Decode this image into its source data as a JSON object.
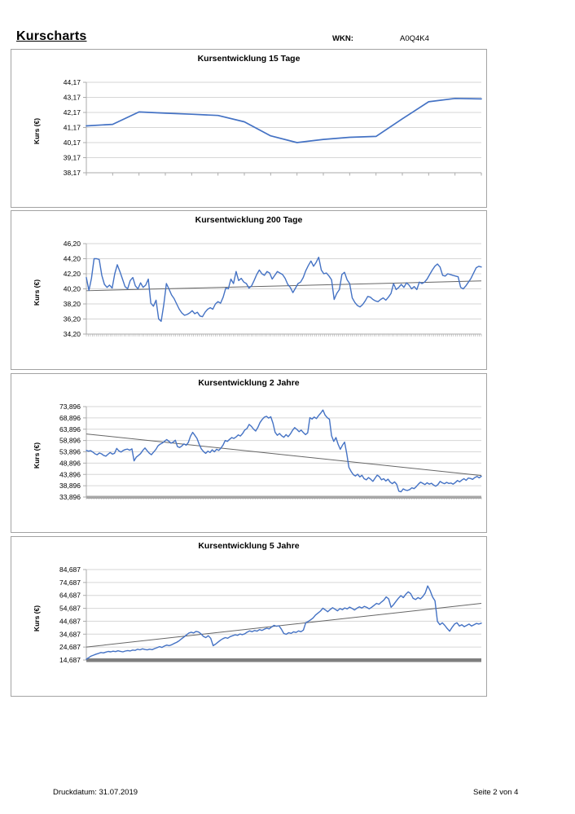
{
  "header": {
    "title": "Kurscharts",
    "wkn_label": "WKN:",
    "wkn_value": "A0Q4K4"
  },
  "footer": {
    "left": "Druckdatum: 31.07.2019",
    "right": "Seite 2 von 4"
  },
  "colors": {
    "series": "#4472C4",
    "trend": "#666666",
    "grid": "#D6D6D6",
    "axis": "#ABABAB",
    "thick_axis": "#A6A6A6",
    "thick_axis_dark": "#7F7F7F"
  },
  "chart_data": [
    {
      "type": "line",
      "title": "Kursentwicklung 15 Tage",
      "xlabel": "",
      "ylabel": "Kurs (€)",
      "ytick_labels": [
        "44,17",
        "43,17",
        "42,17",
        "41,17",
        "40,17",
        "39,17",
        "38,17"
      ],
      "ymin": 38.17,
      "ymax": 44.17,
      "grid": true,
      "legend": "none",
      "x_tick_count": 16,
      "x_axis_style": "ticks",
      "trend": null,
      "values": [
        41.28,
        41.38,
        42.2,
        42.12,
        42.05,
        41.97,
        41.55,
        40.62,
        40.17,
        40.38,
        40.52,
        40.58,
        41.75,
        42.88,
        43.1,
        43.07
      ]
    },
    {
      "type": "line",
      "title": "Kursentwicklung 200 Tage",
      "xlabel": "",
      "ylabel": "Kurs (€)",
      "ytick_labels": [
        "46,20",
        "44,20",
        "42,20",
        "40,20",
        "38,20",
        "36,20",
        "34,20"
      ],
      "ymin": 34.2,
      "ymax": 46.2,
      "grid": true,
      "legend": "none",
      "x_tick_count": 200,
      "x_axis_style": "dense",
      "trend": [
        39.95,
        41.25
      ],
      "values": [
        41.7,
        40.0,
        41.6,
        44.2,
        44.2,
        44.1,
        42.0,
        40.8,
        40.4,
        40.7,
        40.3,
        42.2,
        43.4,
        42.5,
        41.5,
        40.5,
        40.2,
        41.3,
        41.7,
        40.6,
        40.2,
        41.0,
        40.4,
        40.7,
        41.5,
        38.3,
        37.9,
        38.7,
        36.2,
        35.9,
        38.1,
        40.9,
        40.2,
        39.4,
        38.9,
        38.2,
        37.5,
        37.0,
        36.7,
        36.8,
        37.0,
        37.3,
        36.9,
        37.1,
        36.6,
        36.5,
        37.1,
        37.5,
        37.7,
        37.5,
        38.2,
        38.5,
        38.3,
        39.1,
        40.3,
        40.2,
        41.5,
        40.9,
        42.5,
        41.3,
        41.6,
        41.1,
        40.9,
        40.3,
        40.6,
        41.3,
        42.1,
        42.7,
        42.2,
        42.0,
        42.5,
        42.3,
        41.5,
        42.0,
        42.5,
        42.3,
        42.1,
        41.6,
        40.8,
        40.4,
        39.7,
        40.3,
        40.9,
        41.1,
        41.7,
        42.6,
        43.3,
        43.9,
        43.2,
        43.7,
        44.4,
        42.7,
        42.2,
        42.3,
        41.9,
        41.4,
        38.8,
        39.6,
        40.1,
        42.1,
        42.4,
        41.4,
        40.9,
        39.0,
        38.4,
        38.0,
        37.8,
        38.1,
        38.6,
        39.2,
        39.1,
        38.8,
        38.6,
        38.5,
        38.8,
        39.0,
        38.7,
        39.1,
        39.6,
        40.9,
        40.1,
        40.4,
        40.8,
        40.4,
        41.0,
        40.7,
        40.2,
        40.5,
        40.1,
        41.1,
        40.9,
        41.1,
        41.5,
        42.1,
        42.7,
        43.2,
        43.5,
        43.1,
        42.0,
        41.9,
        42.2,
        42.1,
        42.0,
        41.9,
        41.8,
        40.4,
        40.2,
        40.6,
        41.1,
        41.6,
        42.3,
        43.0,
        43.2,
        43.1
      ]
    },
    {
      "type": "line",
      "title": "Kursentwicklung 2 Jahre",
      "xlabel": "",
      "ylabel": "Kurs (€)",
      "ytick_labels": [
        "73,896",
        "68,896",
        "63,896",
        "58,896",
        "53,896",
        "48,896",
        "43,896",
        "38,896",
        "33,896"
      ],
      "ymin": 33.896,
      "ymax": 73.896,
      "grid": true,
      "legend": "none",
      "x_tick_count": 160,
      "x_axis_style": "thick",
      "trend": [
        61.8,
        43.4
      ],
      "values": [
        54.5,
        54.2,
        54.4,
        53.8,
        53.0,
        52.6,
        53.4,
        53.0,
        52.3,
        52.0,
        52.8,
        53.6,
        52.9,
        53.2,
        55.4,
        54.3,
        53.8,
        54.5,
        54.9,
        55.1,
        54.6,
        55.2,
        49.9,
        51.5,
        52.3,
        53.1,
        54.5,
        55.6,
        54.4,
        53.3,
        52.6,
        53.8,
        54.9,
        56.5,
        57.3,
        57.8,
        58.5,
        59.3,
        58.6,
        57.7,
        58.2,
        59.0,
        56.2,
        55.8,
        56.5,
        57.4,
        56.8,
        58.0,
        60.8,
        62.5,
        61.2,
        59.8,
        57.2,
        55.2,
        54.0,
        53.2,
        54.2,
        53.6,
        54.8,
        53.9,
        55.0,
        54.5,
        55.5,
        56.9,
        58.9,
        58.5,
        59.4,
        60.2,
        59.8,
        60.5,
        61.4,
        60.9,
        62.0,
        63.5,
        64.2,
        66.0,
        65.2,
        64.0,
        63.1,
        64.6,
        66.8,
        68.2,
        69.2,
        69.6,
        68.8,
        69.4,
        66.5,
        62.5,
        61.2,
        62.0,
        61.0,
        60.3,
        61.5,
        60.6,
        61.8,
        63.4,
        64.6,
        63.8,
        62.8,
        63.5,
        62.4,
        61.5,
        62.3,
        69.0,
        68.4,
        69.3,
        68.6,
        69.9,
        71.0,
        72.4,
        70.2,
        69.0,
        68.3,
        61.0,
        58.5,
        60.2,
        57.3,
        55.0,
        56.8,
        58.2,
        53.0,
        47.0,
        45.2,
        43.8,
        43.2,
        44.0,
        42.8,
        43.5,
        42.0,
        41.5,
        42.5,
        41.8,
        40.8,
        42.2,
        43.6,
        42.9,
        41.5,
        42.0,
        41.0,
        41.8,
        40.5,
        39.8,
        40.6,
        39.5,
        36.5,
        36.2,
        37.5,
        37.0,
        36.8,
        37.2,
        38.0,
        37.6,
        38.5,
        39.6,
        40.5,
        40.0,
        39.4,
        40.2,
        39.6,
        40.0,
        39.2,
        38.7,
        39.4,
        40.8,
        40.2,
        39.8,
        40.4,
        39.9,
        40.1,
        39.6,
        40.3,
        41.2,
        40.6,
        41.4,
        42.0,
        41.3,
        42.3,
        42.1,
        41.7,
        42.5,
        43.0,
        42.4,
        43.1
      ]
    },
    {
      "type": "line",
      "title": "Kursentwicklung 5 Jahre",
      "xlabel": "",
      "ylabel": "Kurs (€)",
      "ytick_labels": [
        "84,687",
        "74,687",
        "64,687",
        "54,687",
        "44,687",
        "34,687",
        "24,687",
        "14,687"
      ],
      "ymin": 14.687,
      "ymax": 84.687,
      "grid": true,
      "legend": "none",
      "x_tick_count": 0,
      "x_axis_style": "thick_dark",
      "trend": [
        24.7,
        58.5
      ],
      "values": [
        15.3,
        16.5,
        17.8,
        18.5,
        19.2,
        19.8,
        20.5,
        20.2,
        20.8,
        21.3,
        21.0,
        21.5,
        21.2,
        21.8,
        21.4,
        21.0,
        21.6,
        22.0,
        21.7,
        22.4,
        22.1,
        23.0,
        22.6,
        23.3,
        22.8,
        22.5,
        23.1,
        22.7,
        23.5,
        24.2,
        25.0,
        24.4,
        25.5,
        26.2,
        25.8,
        26.5,
        27.5,
        28.3,
        29.5,
        31.0,
        32.5,
        34.0,
        35.5,
        36.2,
        35.6,
        36.8,
        36.4,
        35.0,
        33.0,
        32.0,
        33.5,
        31.5,
        25.8,
        27.0,
        28.5,
        30.0,
        31.2,
        32.0,
        31.5,
        32.8,
        33.5,
        34.2,
        33.8,
        34.8,
        34.3,
        35.0,
        36.3,
        37.2,
        36.6,
        37.5,
        37.0,
        38.2,
        37.6,
        38.5,
        39.3,
        38.8,
        40.2,
        41.5,
        40.8,
        41.2,
        38.5,
        35.2,
        34.6,
        35.8,
        35.3,
        36.5,
        36.0,
        37.2,
        36.6,
        37.8,
        43.5,
        44.5,
        45.8,
        47.2,
        49.5,
        51.0,
        52.5,
        54.8,
        53.5,
        52.0,
        53.8,
        55.2,
        54.0,
        52.8,
        54.5,
        53.6,
        55.0,
        54.2,
        55.6,
        54.6,
        53.4,
        54.8,
        55.8,
        54.9,
        56.2,
        55.4,
        54.3,
        55.5,
        57.0,
        58.5,
        57.8,
        59.5,
        61.0,
        63.5,
        62.0,
        55.5,
        57.5,
        60.0,
        62.5,
        64.5,
        63.0,
        65.5,
        67.5,
        66.0,
        62.5,
        61.5,
        63.0,
        62.0,
        63.8,
        66.5,
        72.0,
        68.5,
        63.5,
        60.5,
        44.5,
        42.0,
        43.5,
        41.5,
        39.0,
        37.0,
        40.0,
        42.5,
        43.5,
        41.0,
        42.0,
        40.5,
        41.5,
        42.5,
        41.0,
        42.0,
        43.0,
        42.5,
        43.2
      ]
    }
  ]
}
